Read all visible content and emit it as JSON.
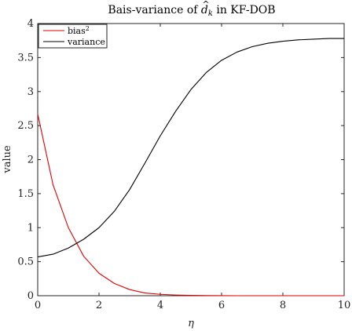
{
  "chart_data": {
    "type": "line",
    "title_prefix": "Bais-variance of ",
    "title_var": "d",
    "title_sub": "k",
    "title_suffix": " in KF-DOB",
    "xlabel": "η",
    "ylabel": "value",
    "xlim": [
      0,
      10
    ],
    "ylim": [
      0,
      4
    ],
    "xticks": [
      "0",
      "2",
      "4",
      "6",
      "8",
      "10"
    ],
    "yticks": [
      "0",
      "0.5",
      "1",
      "1.5",
      "2",
      "2.5",
      "3",
      "3.5",
      "4"
    ],
    "grid": false,
    "legend_position": "top-left",
    "x": [
      0,
      0.5,
      1,
      1.5,
      2,
      2.5,
      3,
      3.5,
      4,
      4.5,
      5,
      5.5,
      6,
      6.5,
      7,
      7.5,
      8,
      8.5,
      9,
      9.5,
      10
    ],
    "series": [
      {
        "name": "bias",
        "name_sup": "2",
        "color": "#e00000",
        "values": [
          2.67,
          1.63,
          1.0,
          0.58,
          0.33,
          0.18,
          0.09,
          0.04,
          0.02,
          0.01,
          0.005,
          0.002,
          0.001,
          0.0,
          0.0,
          0.0,
          0.0,
          0.0,
          0.0,
          0.0,
          0.0
        ]
      },
      {
        "name": "variance",
        "color": "#000000",
        "values": [
          0.57,
          0.61,
          0.7,
          0.83,
          1.0,
          1.24,
          1.56,
          1.95,
          2.35,
          2.71,
          3.03,
          3.28,
          3.46,
          3.58,
          3.66,
          3.71,
          3.74,
          3.76,
          3.77,
          3.78,
          3.78
        ]
      }
    ]
  }
}
